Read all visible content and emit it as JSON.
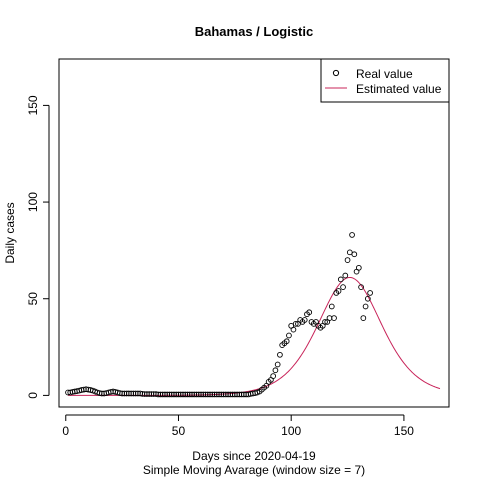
{
  "chart_data": {
    "type": "scatter",
    "title": "Bahamas / Logistic",
    "xlabel": "Days since 2020-04-19",
    "xlabel_sub": "Simple Moving Avarage (window size = 7)",
    "ylabel": "Daily cases",
    "xlim": [
      -3,
      170
    ],
    "ylim": [
      -6,
      174
    ],
    "x_ticks": [
      0,
      50,
      100,
      150
    ],
    "y_ticks": [
      0,
      50,
      100,
      150
    ],
    "grid": false,
    "legend_position": "top-right",
    "legend": [
      "Real value",
      "Estimated value"
    ],
    "colors": {
      "real": "#000000",
      "estimated": "#c8245a"
    },
    "series": [
      {
        "name": "Real value",
        "style": "open-circle",
        "points": [
          [
            1,
            1.5
          ],
          [
            2,
            1.5
          ],
          [
            3,
            1.8
          ],
          [
            4,
            2
          ],
          [
            5,
            2.2
          ],
          [
            6,
            2.5
          ],
          [
            7,
            2.8
          ],
          [
            8,
            3
          ],
          [
            9,
            3.2
          ],
          [
            10,
            3
          ],
          [
            11,
            2.8
          ],
          [
            12,
            2.5
          ],
          [
            13,
            2
          ],
          [
            14,
            1.5
          ],
          [
            15,
            1.2
          ],
          [
            16,
            1
          ],
          [
            17,
            1
          ],
          [
            18,
            1.2
          ],
          [
            19,
            1.5
          ],
          [
            20,
            1.8
          ],
          [
            21,
            2
          ],
          [
            22,
            1.8
          ],
          [
            23,
            1.5
          ],
          [
            24,
            1.2
          ],
          [
            25,
            1
          ],
          [
            26,
            1
          ],
          [
            27,
            1
          ],
          [
            28,
            1
          ],
          [
            29,
            1
          ],
          [
            30,
            1
          ],
          [
            31,
            1
          ],
          [
            32,
            1
          ],
          [
            33,
            1
          ],
          [
            34,
            0.8
          ],
          [
            35,
            0.7
          ],
          [
            36,
            0.7
          ],
          [
            37,
            0.7
          ],
          [
            38,
            0.7
          ],
          [
            39,
            0.7
          ],
          [
            40,
            0.7
          ],
          [
            41,
            0.5
          ],
          [
            42,
            0.5
          ],
          [
            43,
            0.5
          ],
          [
            44,
            0.5
          ],
          [
            45,
            0.5
          ],
          [
            46,
            0.5
          ],
          [
            47,
            0.5
          ],
          [
            48,
            0.5
          ],
          [
            49,
            0.5
          ],
          [
            50,
            0.5
          ],
          [
            51,
            0.5
          ],
          [
            52,
            0.5
          ],
          [
            53,
            0.5
          ],
          [
            54,
            0.5
          ],
          [
            55,
            0.5
          ],
          [
            56,
            0.5
          ],
          [
            57,
            0.5
          ],
          [
            58,
            0.5
          ],
          [
            59,
            0.5
          ],
          [
            60,
            0.5
          ],
          [
            61,
            0.5
          ],
          [
            62,
            0.5
          ],
          [
            63,
            0.5
          ],
          [
            64,
            0.5
          ],
          [
            65,
            0.5
          ],
          [
            66,
            0.5
          ],
          [
            67,
            0.5
          ],
          [
            68,
            0.5
          ],
          [
            69,
            0.5
          ],
          [
            70,
            0.5
          ],
          [
            71,
            0.5
          ],
          [
            72,
            0.5
          ],
          [
            73,
            0.5
          ],
          [
            74,
            0.5
          ],
          [
            75,
            0.5
          ],
          [
            76,
            0.5
          ],
          [
            77,
            0.5
          ],
          [
            78,
            0.5
          ],
          [
            79,
            0.5
          ],
          [
            80,
            0.5
          ],
          [
            81,
            0.5
          ],
          [
            82,
            0.8
          ],
          [
            83,
            1
          ],
          [
            84,
            1.2
          ],
          [
            85,
            1.5
          ],
          [
            86,
            2
          ],
          [
            87,
            3
          ],
          [
            88,
            4
          ],
          [
            89,
            5
          ],
          [
            90,
            7
          ],
          [
            91,
            8
          ],
          [
            92,
            10
          ],
          [
            93,
            13
          ],
          [
            94,
            16
          ],
          [
            95,
            21
          ],
          [
            96,
            26
          ],
          [
            97,
            27
          ],
          [
            98,
            28
          ],
          [
            99,
            31
          ],
          [
            100,
            36
          ],
          [
            101,
            34
          ],
          [
            102,
            37
          ],
          [
            103,
            37
          ],
          [
            104,
            39
          ],
          [
            105,
            38
          ],
          [
            106,
            39
          ],
          [
            107,
            42
          ],
          [
            108,
            43
          ],
          [
            109,
            38
          ],
          [
            110,
            37
          ],
          [
            111,
            38
          ],
          [
            112,
            36
          ],
          [
            113,
            35
          ],
          [
            114,
            36
          ],
          [
            115,
            38
          ],
          [
            116,
            38
          ],
          [
            117,
            40
          ],
          [
            118,
            46
          ],
          [
            119,
            40
          ],
          [
            120,
            53
          ],
          [
            121,
            54
          ],
          [
            122,
            60
          ],
          [
            123,
            56
          ],
          [
            124,
            62
          ],
          [
            125,
            70
          ],
          [
            126,
            74
          ],
          [
            127,
            83
          ],
          [
            128,
            73
          ],
          [
            129,
            64
          ],
          [
            130,
            66
          ],
          [
            131,
            56
          ],
          [
            132,
            40
          ],
          [
            133,
            46
          ],
          [
            134,
            50
          ],
          [
            135,
            53
          ]
        ]
      },
      {
        "name": "Estimated value",
        "style": "line",
        "model": "logistic-derivative",
        "params": {
          "peak_day": 126,
          "peak_value": 61,
          "width_days": 9.5
        },
        "x_range": [
          1,
          166
        ]
      }
    ]
  }
}
